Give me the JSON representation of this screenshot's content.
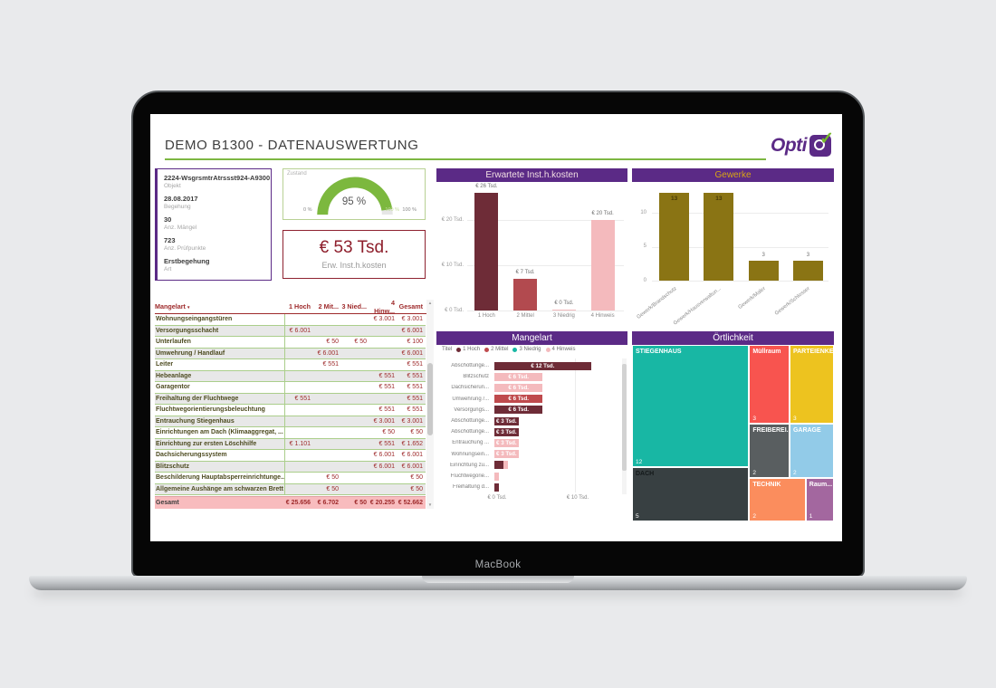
{
  "laptop": {
    "brand_label": "MacBook"
  },
  "header": {
    "title": "DEMO B1300 - DATENAUSWERTUNG",
    "logo_text": "Opti"
  },
  "info_card": {
    "fields": [
      {
        "value": "2224-WsgrsmtrAtrssst924-A9300",
        "label": "Objekt"
      },
      {
        "value": "28.08.2017",
        "label": "Begehung"
      },
      {
        "value": "30",
        "label": "Anz. Mängel"
      },
      {
        "value": "723",
        "label": "Anz. Prüfpunkte"
      },
      {
        "value": "Erstbegehung",
        "label": "Art"
      }
    ]
  },
  "gauge": {
    "title": "Zustand",
    "percent": 95,
    "value_label": "95 %",
    "min_label": "0 %",
    "max_label": "100 %",
    "target_label": "100 %",
    "color": "#7cb83e"
  },
  "cost_card": {
    "value": "€ 53 Tsd.",
    "label": "Erw. Inst.h.kosten"
  },
  "table": {
    "columns": [
      "Mangelart",
      "1 Hoch",
      "2 Mit...",
      "3 Nied...",
      "4 Hinw...",
      "Gesamt"
    ],
    "rows": [
      {
        "label": "Wohnungseingangstüren",
        "values": [
          "",
          "",
          "",
          "€ 3.001",
          "€ 3.001"
        ]
      },
      {
        "label": "Versorgungsschacht",
        "values": [
          "€ 6.001",
          "",
          "",
          "",
          "€ 6.001"
        ]
      },
      {
        "label": "Unterlaufen",
        "values": [
          "",
          "€ 50",
          "€ 50",
          "",
          "€ 100"
        ]
      },
      {
        "label": "Umwehrung / Handlauf",
        "values": [
          "",
          "€ 6.001",
          "",
          "",
          "€ 6.001"
        ]
      },
      {
        "label": "Leiter",
        "values": [
          "",
          "€ 551",
          "",
          "",
          "€ 551"
        ]
      },
      {
        "label": "Hebeanlage",
        "values": [
          "",
          "",
          "",
          "€ 551",
          "€ 551"
        ]
      },
      {
        "label": "Garagentor",
        "values": [
          "",
          "",
          "",
          "€ 551",
          "€ 551"
        ]
      },
      {
        "label": "Freihaltung der Fluchtwege",
        "values": [
          "€ 551",
          "",
          "",
          "",
          "€ 551"
        ]
      },
      {
        "label": "Fluchtwegorientierungsbeleuchtung",
        "values": [
          "",
          "",
          "",
          "€ 551",
          "€ 551"
        ]
      },
      {
        "label": "Entrauchung Stiegenhaus",
        "values": [
          "",
          "",
          "",
          "€ 3.001",
          "€ 3.001"
        ]
      },
      {
        "label": "Einrichtungen am Dach (Klimaaggregat, ...",
        "values": [
          "",
          "",
          "",
          "€ 50",
          "€ 50"
        ]
      },
      {
        "label": "Einrichtung zur ersten Löschhilfe",
        "values": [
          "€ 1.101",
          "",
          "",
          "€ 551",
          "€ 1.652"
        ]
      },
      {
        "label": "Dachsicherungssystem",
        "values": [
          "",
          "",
          "",
          "€ 6.001",
          "€ 6.001"
        ]
      },
      {
        "label": "Blitzschutz",
        "values": [
          "",
          "",
          "",
          "€ 6.001",
          "€ 6.001"
        ]
      },
      {
        "label": "Beschilderung Hauptabsperreinrichtunge...",
        "values": [
          "",
          "€ 50",
          "",
          "",
          "€ 50"
        ]
      },
      {
        "label": "Allgemeine Aushänge am schwarzen Brett",
        "values": [
          "",
          "€ 50",
          "",
          "",
          "€ 50"
        ]
      }
    ],
    "total": {
      "label": "Gesamt",
      "values": [
        "€ 25.656",
        "€ 6.702",
        "€ 50",
        "€ 20.255",
        "€ 52.662"
      ]
    }
  },
  "chart_data": [
    {
      "type": "bar",
      "title": "Erwartete Inst.h.kosten",
      "categories": [
        "1 Hoch",
        "2 Mittel",
        "3 Niedrig",
        "4 Hinweis"
      ],
      "values": [
        26,
        7,
        0.3,
        20
      ],
      "data_labels": [
        "€ 26 Tsd.",
        "€ 7 Tsd.",
        "€ 0 Tsd.",
        "€ 20 Tsd."
      ],
      "bar_colors": [
        "#6e2c37",
        "#b24a4f",
        "#f4babd",
        "#f4babd"
      ],
      "y_ticks": [
        {
          "v": 0,
          "label": "€ 0 Tsd."
        },
        {
          "v": 10,
          "label": "€ 10 Tsd."
        },
        {
          "v": 20,
          "label": "€ 20 Tsd."
        }
      ],
      "ylim": [
        0,
        28
      ],
      "grid": true,
      "legend_position": "none"
    },
    {
      "type": "bar",
      "title": "Gewerke",
      "categories": [
        "Gewerk/Brandschutz",
        "Gewerk/Hausverwaltun...",
        "Gewerk/Maler",
        "Gewerk/Schlosser"
      ],
      "values": [
        13,
        13,
        3,
        3
      ],
      "bar_color": "#8a7414",
      "y_ticks": [
        {
          "v": 0,
          "label": "0"
        },
        {
          "v": 5,
          "label": "5"
        },
        {
          "v": 10,
          "label": "10"
        }
      ],
      "ylim": [
        0,
        14
      ],
      "grid": true
    },
    {
      "type": "bar-horizontal",
      "title": "Mangelart",
      "legend_title": "Titel",
      "legend_position": "top",
      "legend": [
        {
          "label": "1 Hoch",
          "color": "#6e2c37"
        },
        {
          "label": "2 Mittel",
          "color": "#bf4a4d"
        },
        {
          "label": "3 Niedrig",
          "color": "#18b7a4"
        },
        {
          "label": "4 Hinweis",
          "color": "#f4babd"
        }
      ],
      "rows": [
        {
          "label": "Abschottunge...",
          "segments": [
            {
              "value": 12,
              "series": "1 Hoch",
              "color": "#6e2c37"
            }
          ],
          "text": "€ 12 Tsd."
        },
        {
          "label": "Blitzschutz",
          "segments": [
            {
              "value": 6,
              "series": "4 Hinweis",
              "color": "#f4babd"
            }
          ],
          "text": "€ 6 Tsd."
        },
        {
          "label": "Dachsicherun...",
          "segments": [
            {
              "value": 6,
              "series": "4 Hinweis",
              "color": "#f4babd"
            }
          ],
          "text": "€ 6 Tsd."
        },
        {
          "label": "Umwehrung /...",
          "segments": [
            {
              "value": 6,
              "series": "2 Mittel",
              "color": "#bf4a4d"
            }
          ],
          "text": "€ 6 Tsd."
        },
        {
          "label": "Versorgungs...",
          "segments": [
            {
              "value": 6,
              "series": "1 Hoch",
              "color": "#6e2c37"
            }
          ],
          "text": "€ 6 Tsd."
        },
        {
          "label": "Abschottunge...",
          "segments": [
            {
              "value": 3,
              "series": "1 Hoch",
              "color": "#6e2c37"
            }
          ],
          "text": "€ 3 Tsd."
        },
        {
          "label": "Abschottunge...",
          "segments": [
            {
              "value": 3,
              "series": "1 Hoch",
              "color": "#6e2c37"
            }
          ],
          "text": "€ 3 Tsd."
        },
        {
          "label": "Entrauchung ...",
          "segments": [
            {
              "value": 3,
              "series": "4 Hinweis",
              "color": "#f4babd"
            }
          ],
          "text": "€ 3 Tsd."
        },
        {
          "label": "Wohnungsein...",
          "segments": [
            {
              "value": 3,
              "series": "4 Hinweis",
              "color": "#f4babd"
            }
          ],
          "text": "€ 3 Tsd."
        },
        {
          "label": "Einrichtung zu...",
          "segments": [
            {
              "value": 1.1,
              "series": "1 Hoch",
              "color": "#6e2c37"
            },
            {
              "value": 0.6,
              "series": "4 Hinweis",
              "color": "#f4babd"
            }
          ],
          "text": ""
        },
        {
          "label": "Fluchtwegorie...",
          "segments": [
            {
              "value": 0.6,
              "series": "4 Hinweis",
              "color": "#f4babd"
            }
          ],
          "text": ""
        },
        {
          "label": "Freihaltung d...",
          "segments": [
            {
              "value": 0.6,
              "series": "1 Hoch",
              "color": "#6e2c37"
            }
          ],
          "text": ""
        }
      ],
      "x_ticks": [
        {
          "v": 0,
          "label": "€ 0 Tsd."
        },
        {
          "v": 10,
          "label": "€ 10 Tsd."
        }
      ],
      "xlim": [
        0,
        15.5
      ]
    },
    {
      "type": "treemap",
      "title": "Örtlichkeit",
      "tiles": [
        {
          "label": "STIEGENHAUS",
          "value": 12,
          "color": "#18b7a4",
          "text_color": "#ffffff",
          "value_color": "#ffffff",
          "x": 0,
          "y": 0,
          "w": 58,
          "h": 69
        },
        {
          "label": "Müllraum",
          "value": 3,
          "color": "#f8544f",
          "text_color": "#ffffff",
          "value_color": "#ffffff",
          "x": 58,
          "y": 0,
          "w": 20,
          "h": 44.5
        },
        {
          "label": "PARTEIENKE...",
          "value": 3,
          "color": "#edc31f",
          "text_color": "#ffffff",
          "value_color": "#ffffff",
          "x": 78,
          "y": 0,
          "w": 22,
          "h": 44.5
        },
        {
          "label": "FREIBEREI...",
          "value": 2,
          "color": "#595e60",
          "text_color": "#ffffff",
          "value_color": "#ffffff",
          "x": 58,
          "y": 44.5,
          "w": 20,
          "h": 31
        },
        {
          "label": "GARAGE",
          "value": 2,
          "color": "#92cbe8",
          "text_color": "#ffffff",
          "value_color": "#ffffff",
          "x": 78,
          "y": 44.5,
          "w": 22,
          "h": 31
        },
        {
          "label": "DACH",
          "value": 5,
          "color": "#384042",
          "text_color": "#14191a",
          "value_color": "#ffffff",
          "x": 0,
          "y": 69,
          "w": 58,
          "h": 31
        },
        {
          "label": "TECHNIK",
          "value": 2,
          "color": "#fb8d5d",
          "text_color": "#ffffff",
          "value_color": "#ffffff",
          "x": 58,
          "y": 75.5,
          "w": 28,
          "h": 24.5
        },
        {
          "label": "Raum...",
          "value": 1,
          "color": "#a3679f",
          "text_color": "#ffffff",
          "value_color": "#ffffff",
          "x": 86,
          "y": 75.5,
          "w": 14,
          "h": 24.5
        }
      ]
    }
  ]
}
